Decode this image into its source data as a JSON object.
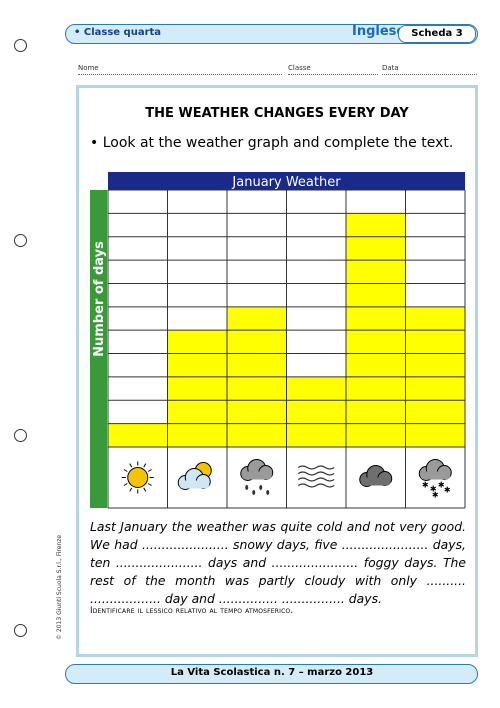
{
  "header": {
    "class_label": "• Classe quarta",
    "subject": "Inglese",
    "sheet": "Scheda 3"
  },
  "fields": [
    "Nome",
    "Classe",
    "Data"
  ],
  "title": "THE WEATHER CHANGES EVERY DAY",
  "instruction": "• Look at the weather graph and complete the text.",
  "chart_data": {
    "type": "bar",
    "title": "January Weather",
    "y_label": "Number of days",
    "categories": [
      null,
      null,
      null,
      null,
      null,
      null
    ],
    "values": [
      1,
      5,
      6,
      3,
      10,
      6
    ],
    "color": "#ffff00",
    "ylim": [
      0,
      11
    ]
  },
  "text": "Last January the weather was quite cold and not very good. We had ...................... snowy days, five ...................... days, ten ...................... days and ...................... foggy days. The rest of the month was partly cloudy with only .......... .................. day and ............... ................ days.",
  "note": "Identificare il lessico relativo al tempo atmosferico.",
  "credit": "© 2013 Giunti Scuola S.r.l., Firenze",
  "footer": "La Vita Scolastica n. 7 – marzo 2013"
}
